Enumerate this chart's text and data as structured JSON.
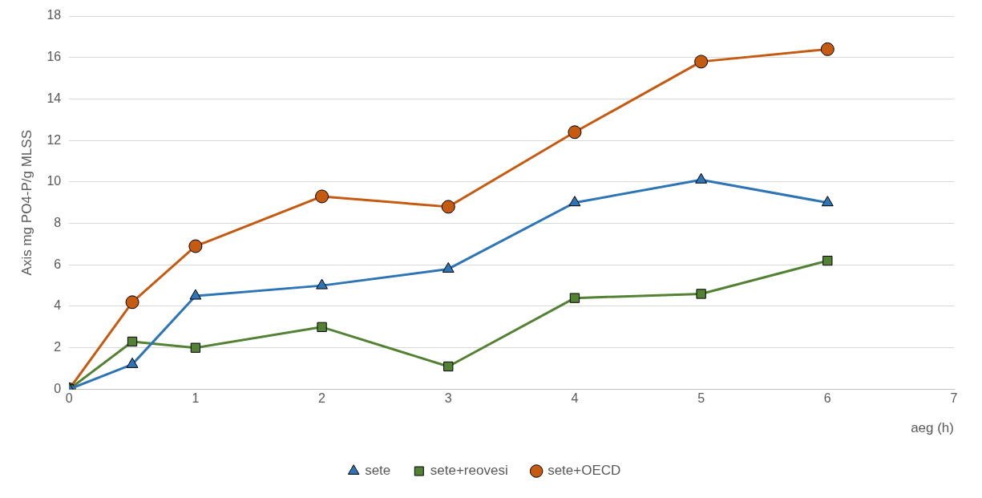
{
  "chart_data": {
    "type": "line",
    "xlabel": "aeg (h)",
    "ylabel": "Axis mg PO4-P/g MLSS",
    "x": [
      0,
      0.5,
      1,
      2,
      3,
      4,
      5,
      6
    ],
    "xlim": [
      0,
      7
    ],
    "xticks": [
      0,
      1,
      2,
      3,
      4,
      5,
      6,
      7
    ],
    "ylim": [
      0,
      18
    ],
    "yticks": [
      0,
      2,
      4,
      6,
      8,
      10,
      12,
      14,
      16,
      18
    ],
    "grid": "y",
    "legend": "bottom",
    "line_style": "solid",
    "series": [
      {
        "name": "sete",
        "color": "#2e75b6",
        "marker": "triangle",
        "values": [
          0,
          1.2,
          4.5,
          5.0,
          5.8,
          9.0,
          10.1,
          9.0
        ]
      },
      {
        "name": "sete+reovesi",
        "color": "#548235",
        "marker": "square",
        "values": [
          0,
          2.3,
          2.0,
          3.0,
          1.1,
          4.4,
          4.6,
          6.2
        ]
      },
      {
        "name": "sete+OECD",
        "color": "#c55a11",
        "marker": "circle",
        "values": [
          0,
          4.2,
          6.9,
          9.3,
          8.8,
          12.4,
          15.8,
          16.4
        ]
      }
    ]
  }
}
